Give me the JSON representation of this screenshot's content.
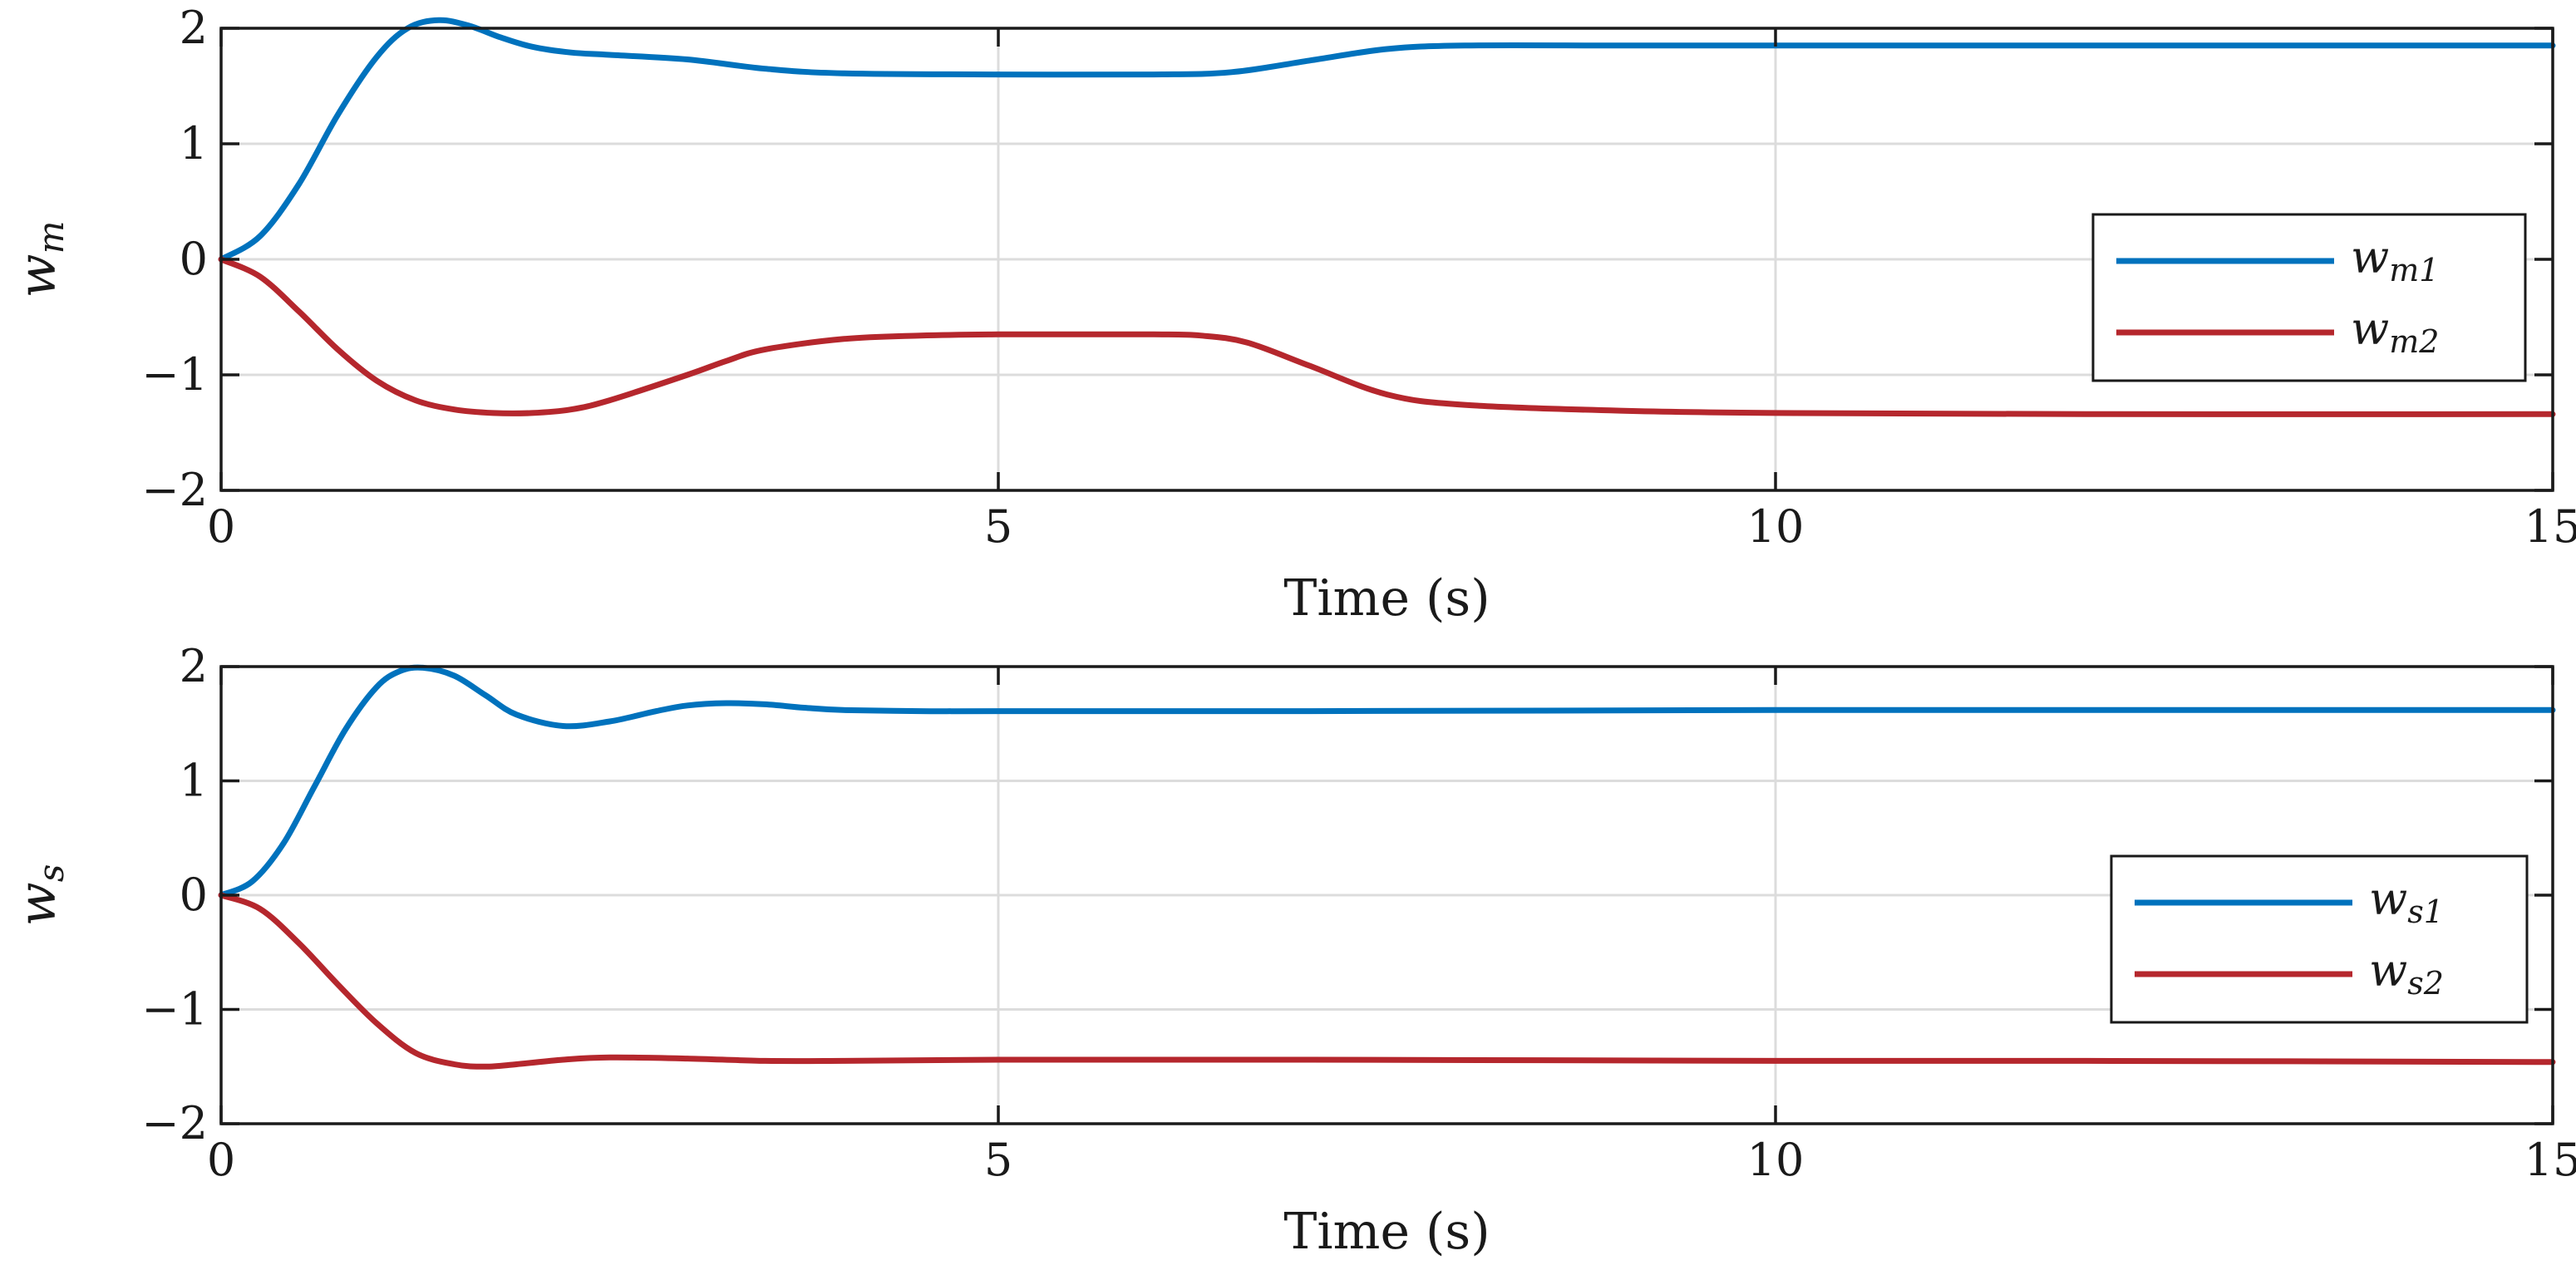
{
  "colors": {
    "series1": "#0072BD",
    "series2": "#B5272D",
    "grid": "#dcdcdc",
    "axis": "#1a1a1a",
    "background": "#ffffff"
  },
  "chart_data": [
    {
      "type": "line",
      "title": "",
      "xlabel": "Time (s)",
      "ylabel": {
        "main": "w",
        "sub": "m"
      },
      "xlim": [
        0,
        15
      ],
      "ylim": [
        -2,
        2
      ],
      "xticks": [
        0,
        5,
        10,
        15
      ],
      "xtick_labels": [
        "0",
        "5",
        "10",
        "15"
      ],
      "yticks": [
        -2,
        -1,
        0,
        1,
        2
      ],
      "ytick_labels": [
        "−2",
        "−1",
        "0",
        "1",
        "2"
      ],
      "grid": true,
      "legend_position": "right",
      "series": [
        {
          "name": {
            "main": "w",
            "sub": "m1"
          },
          "color_key": "series1",
          "x": [
            0,
            0.25,
            0.5,
            0.75,
            1.0,
            1.2,
            1.4,
            1.6,
            1.8,
            2.0,
            2.25,
            2.5,
            3.0,
            3.5,
            4.0,
            5.0,
            6.0,
            6.5,
            7.0,
            7.5,
            8.0,
            9.0,
            10.0,
            12.0,
            15.0
          ],
          "y": [
            0,
            0.2,
            0.65,
            1.25,
            1.75,
            2.0,
            2.07,
            2.02,
            1.92,
            1.84,
            1.79,
            1.77,
            1.73,
            1.65,
            1.61,
            1.6,
            1.6,
            1.62,
            1.72,
            1.82,
            1.85,
            1.85,
            1.85,
            1.85,
            1.85
          ]
        },
        {
          "name": {
            "main": "w",
            "sub": "m2"
          },
          "color_key": "series2",
          "x": [
            0,
            0.25,
            0.5,
            0.75,
            1.0,
            1.25,
            1.5,
            1.75,
            2.0,
            2.25,
            2.5,
            3.0,
            3.25,
            3.5,
            4.0,
            4.5,
            5.0,
            5.5,
            6.0,
            6.3,
            6.6,
            7.0,
            7.5,
            8.0,
            9.0,
            10.0,
            12.0,
            15.0
          ],
          "y": [
            0,
            -0.15,
            -0.45,
            -0.78,
            -1.05,
            -1.22,
            -1.3,
            -1.33,
            -1.33,
            -1.3,
            -1.22,
            -1.0,
            -0.88,
            -0.78,
            -0.69,
            -0.66,
            -0.65,
            -0.65,
            -0.65,
            -0.66,
            -0.72,
            -0.92,
            -1.17,
            -1.26,
            -1.31,
            -1.33,
            -1.34,
            -1.34
          ]
        }
      ]
    },
    {
      "type": "line",
      "title": "",
      "xlabel": "Time (s)",
      "ylabel": {
        "main": "w",
        "sub": "s"
      },
      "xlim": [
        0,
        15
      ],
      "ylim": [
        -2,
        2
      ],
      "xticks": [
        0,
        5,
        10,
        15
      ],
      "xtick_labels": [
        "0",
        "5",
        "10",
        "15"
      ],
      "yticks": [
        -2,
        -1,
        0,
        1,
        2
      ],
      "ytick_labels": [
        "−2",
        "−1",
        "0",
        "1",
        "2"
      ],
      "grid": true,
      "legend_position": "right",
      "series": [
        {
          "name": {
            "main": "w",
            "sub": "s1"
          },
          "color_key": "series1",
          "x": [
            0,
            0.2,
            0.4,
            0.6,
            0.8,
            1.0,
            1.15,
            1.3,
            1.5,
            1.7,
            1.9,
            2.2,
            2.5,
            2.8,
            3.0,
            3.25,
            3.5,
            3.75,
            4.0,
            4.5,
            5.0,
            7.0,
            10.0,
            12.0,
            15.0
          ],
          "y": [
            0,
            0.12,
            0.45,
            0.95,
            1.45,
            1.82,
            1.96,
            1.99,
            1.92,
            1.75,
            1.58,
            1.48,
            1.52,
            1.61,
            1.66,
            1.68,
            1.67,
            1.64,
            1.62,
            1.61,
            1.61,
            1.61,
            1.62,
            1.62,
            1.62
          ]
        },
        {
          "name": {
            "main": "w",
            "sub": "s2"
          },
          "color_key": "series2",
          "x": [
            0,
            0.25,
            0.5,
            0.75,
            1.0,
            1.25,
            1.5,
            1.7,
            1.9,
            2.2,
            2.5,
            3.0,
            3.5,
            4.0,
            5.0,
            7.0,
            10.0,
            12.0,
            15.0
          ],
          "y": [
            0,
            -0.12,
            -0.42,
            -0.78,
            -1.12,
            -1.38,
            -1.48,
            -1.5,
            -1.48,
            -1.44,
            -1.42,
            -1.43,
            -1.45,
            -1.45,
            -1.44,
            -1.44,
            -1.45,
            -1.45,
            -1.46
          ]
        }
      ]
    }
  ]
}
